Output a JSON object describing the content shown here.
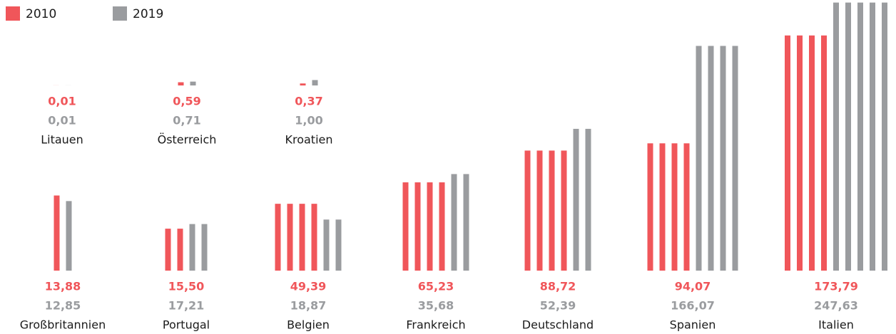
{
  "chart_data": {
    "type": "bar",
    "categories": [
      "Litauen",
      "Österreich",
      "Kroatien",
      "Großbritannien",
      "Portugal",
      "Belgien",
      "Frankreich",
      "Deutschland",
      "Spanien",
      "Italien"
    ],
    "series": [
      {
        "name": "2010",
        "color": "#f0565a",
        "values": [
          0.01,
          0.59,
          0.37,
          13.88,
          15.5,
          49.39,
          65.23,
          88.72,
          94.07,
          173.79
        ],
        "value_labels": [
          "0,01",
          "0,59",
          "0,37",
          "13,88",
          "15,50",
          "49,39",
          "65,23",
          "88,72",
          "94,07",
          "173,79"
        ]
      },
      {
        "name": "2019",
        "color": "#9a9c9f",
        "values": [
          0.01,
          0.71,
          1.0,
          12.85,
          17.21,
          18.87,
          35.68,
          52.39,
          166.07,
          247.63
        ],
        "value_labels": [
          "0,01",
          "0,71",
          "1,00",
          "12,85",
          "17,21",
          "18,87",
          "35,68",
          "52,39",
          "166,07",
          "247,63"
        ]
      }
    ]
  }
}
